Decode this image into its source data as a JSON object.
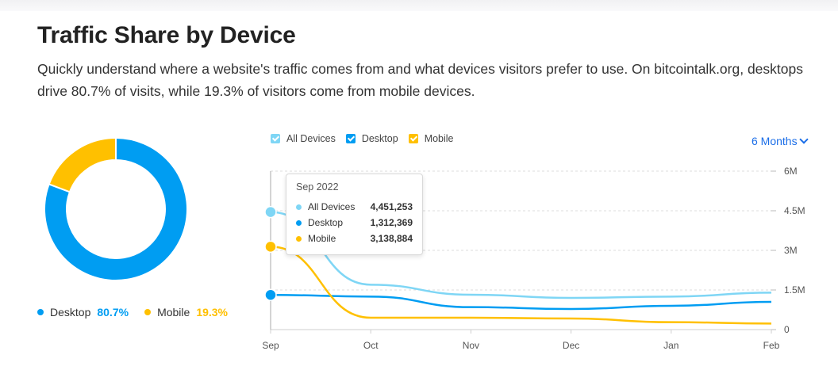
{
  "header": {
    "title": "Traffic Share by Device",
    "description": "Quickly understand where a website's traffic comes from and what devices visitors prefer to use. On bitcointalk.org, desktops drive 80.7% of visits, while 19.3% of visitors come from mobile devices."
  },
  "colors": {
    "all_devices": "#7fd6f5",
    "desktop": "#009df2",
    "mobile": "#ffc000",
    "accent_link": "#1b6ee8"
  },
  "donut": {
    "legend": [
      {
        "label": "Desktop",
        "percent": "80.7%"
      },
      {
        "label": "Mobile",
        "percent": "19.3%"
      }
    ]
  },
  "chart_legend": [
    {
      "label": "All Devices",
      "checked": true
    },
    {
      "label": "Desktop",
      "checked": true
    },
    {
      "label": "Mobile",
      "checked": true
    }
  ],
  "period_selector": {
    "label": "6 Months"
  },
  "tooltip": {
    "title": "Sep 2022",
    "rows": [
      {
        "label": "All Devices",
        "value": "4,451,253"
      },
      {
        "label": "Desktop",
        "value": "1,312,369"
      },
      {
        "label": "Mobile",
        "value": "3,138,884"
      }
    ]
  },
  "chart_data": [
    {
      "type": "pie",
      "style": "donut",
      "categories": [
        "Desktop",
        "Mobile"
      ],
      "values": [
        80.7,
        19.3
      ],
      "title": ""
    },
    {
      "type": "line",
      "title": "",
      "x": [
        "Sep",
        "Oct",
        "Nov",
        "Dec",
        "Jan",
        "Feb"
      ],
      "series": [
        {
          "name": "All Devices",
          "values": [
            4451253,
            1700000,
            1320000,
            1200000,
            1250000,
            1400000
          ]
        },
        {
          "name": "Desktop",
          "values": [
            1312369,
            1250000,
            850000,
            780000,
            900000,
            1050000
          ]
        },
        {
          "name": "Mobile",
          "values": [
            3138884,
            450000,
            450000,
            420000,
            280000,
            230000
          ]
        }
      ],
      "ylim": [
        0,
        6000000
      ],
      "yticks": [
        "0",
        "1.5M",
        "3M",
        "4.5M",
        "6M"
      ],
      "xlabel": "",
      "ylabel": "",
      "grid": true,
      "legend": "top-left",
      "hover_index": 0
    }
  ]
}
